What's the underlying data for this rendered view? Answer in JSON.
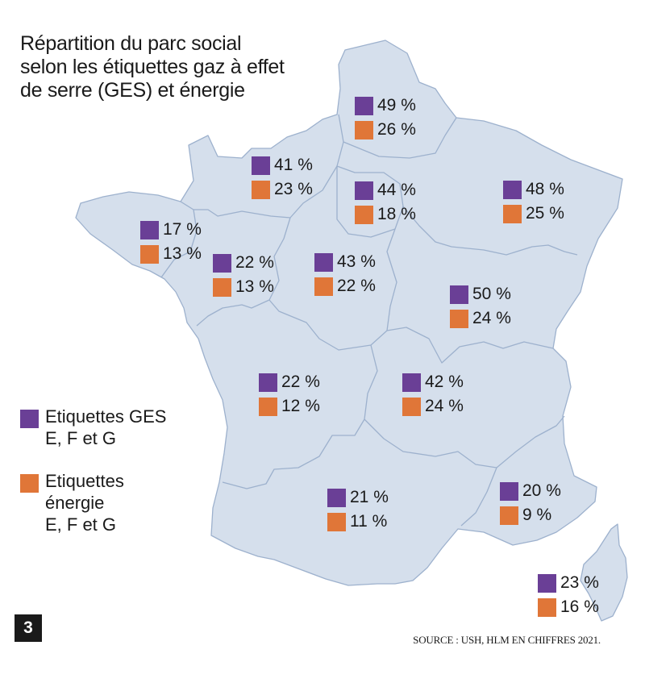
{
  "title_lines": [
    "Répartition du parc social",
    "selon les étiquettes gaz à effet",
    "de serre (GES) et énergie"
  ],
  "colors": {
    "ges": "#6a3f96",
    "energie": "#e07638",
    "land": "#d5dfec",
    "border": "#9db1cd"
  },
  "regions": [
    {
      "ges": "49 %",
      "energie": "26 %"
    },
    {
      "ges": "41 %",
      "energie": "23 %"
    },
    {
      "ges": "44 %",
      "energie": "18 %"
    },
    {
      "ges": "48 %",
      "energie": "25 %"
    },
    {
      "ges": "17 %",
      "energie": "13 %"
    },
    {
      "ges": "22 %",
      "energie": "13 %"
    },
    {
      "ges": "43 %",
      "energie": "22 %"
    },
    {
      "ges": "50 %",
      "energie": "24 %"
    },
    {
      "ges": "22 %",
      "energie": "12 %"
    },
    {
      "ges": "42 %",
      "energie": "24 %"
    },
    {
      "ges": "21 %",
      "energie": "11 %"
    },
    {
      "ges": "20 %",
      "energie": "9 %"
    },
    {
      "ges": "23 %",
      "energie": "16 %"
    }
  ],
  "legend": {
    "ges_lines": [
      "Etiquettes GES",
      "E, F et G"
    ],
    "energie_lines": [
      "Etiquettes",
      "énergie",
      "E, F et G"
    ]
  },
  "badge": "3",
  "source": "SOURCE : USH, HLM EN CHIFFRES 2021."
}
